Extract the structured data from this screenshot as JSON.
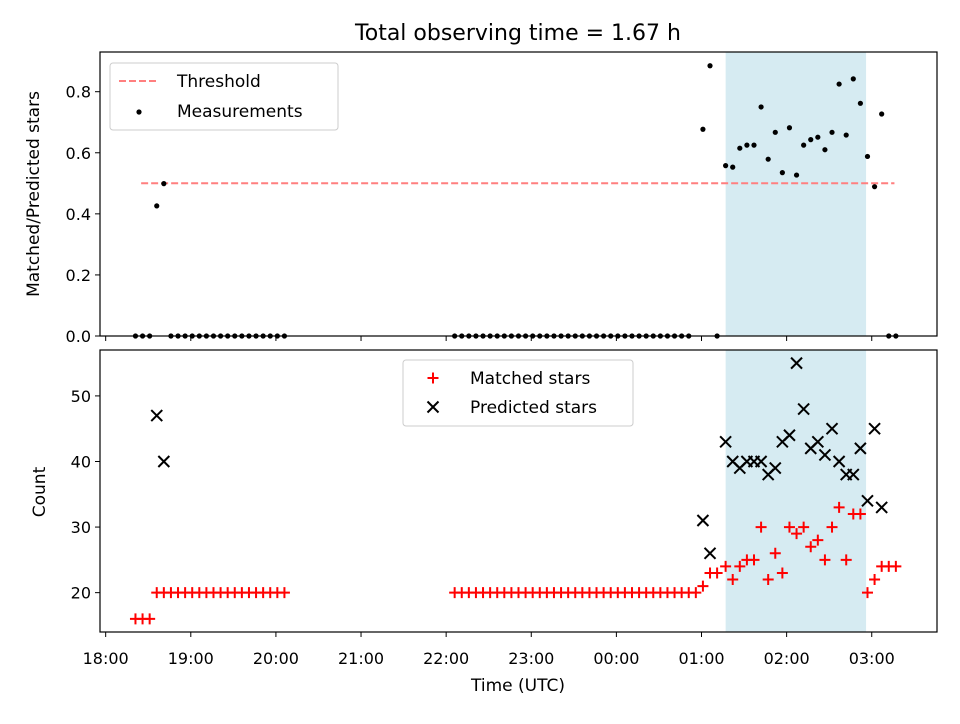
{
  "chart_data": [
    {
      "type": "scatter",
      "title": "Total observing time = 1.67 h",
      "ylabel": "Matched/Predicted stars",
      "xlim": [
        "17:56",
        "03:46"
      ],
      "ylim": [
        0,
        0.93
      ],
      "yticks": [
        0.0,
        0.2,
        0.4,
        0.6,
        0.8
      ],
      "ytick_labels": [
        "0.0",
        "0.2",
        "0.4",
        "0.6",
        "0.8"
      ],
      "shaded_span": {
        "start": "01:17",
        "end": "02:56",
        "color": "#add8e6"
      },
      "legend_position": "upper left",
      "threshold": {
        "name": "Threshold",
        "y": 0.5,
        "x_start": "18:25",
        "x_end": "03:16",
        "color": "#ff7f7f"
      },
      "measurements": {
        "name": "Measurements",
        "color": "#000000",
        "points": [
          [
            "18:21",
            0
          ],
          [
            "18:26",
            0
          ],
          [
            "18:31",
            0
          ],
          [
            "18:36",
            0.426
          ],
          [
            "18:41",
            0.499
          ],
          [
            "18:46",
            0
          ],
          [
            "18:51",
            0
          ],
          [
            "18:56",
            0
          ],
          [
            "19:01",
            0
          ],
          [
            "19:06",
            0
          ],
          [
            "19:11",
            0
          ],
          [
            "19:16",
            0
          ],
          [
            "19:21",
            0
          ],
          [
            "19:26",
            0
          ],
          [
            "19:31",
            0
          ],
          [
            "19:36",
            0
          ],
          [
            "19:41",
            0
          ],
          [
            "19:46",
            0
          ],
          [
            "19:51",
            0
          ],
          [
            "19:56",
            0
          ],
          [
            "20:01",
            0
          ],
          [
            "20:06",
            0
          ],
          [
            "22:06",
            0
          ],
          [
            "22:11",
            0
          ],
          [
            "22:16",
            0
          ],
          [
            "22:21",
            0
          ],
          [
            "22:26",
            0
          ],
          [
            "22:31",
            0
          ],
          [
            "22:36",
            0
          ],
          [
            "22:41",
            0
          ],
          [
            "22:46",
            0
          ],
          [
            "22:51",
            0
          ],
          [
            "22:56",
            0
          ],
          [
            "23:01",
            0
          ],
          [
            "23:06",
            0
          ],
          [
            "23:11",
            0
          ],
          [
            "23:16",
            0
          ],
          [
            "23:21",
            0
          ],
          [
            "23:26",
            0
          ],
          [
            "23:31",
            0
          ],
          [
            "23:36",
            0
          ],
          [
            "23:41",
            0
          ],
          [
            "23:46",
            0
          ],
          [
            "23:51",
            0
          ],
          [
            "23:56",
            0
          ],
          [
            "00:01",
            0
          ],
          [
            "00:06",
            0
          ],
          [
            "00:11",
            0
          ],
          [
            "00:16",
            0
          ],
          [
            "00:21",
            0
          ],
          [
            "00:26",
            0
          ],
          [
            "00:31",
            0
          ],
          [
            "00:36",
            0
          ],
          [
            "00:41",
            0
          ],
          [
            "00:46",
            0
          ],
          [
            "00:51",
            0
          ],
          [
            "01:01",
            0.677
          ],
          [
            "01:06",
            0.885
          ],
          [
            "01:11",
            0
          ],
          [
            "01:17",
            0.558
          ],
          [
            "01:22",
            0.553
          ],
          [
            "01:27",
            0.615
          ],
          [
            "01:32",
            0.625
          ],
          [
            "01:37",
            0.625
          ],
          [
            "01:42",
            0.75
          ],
          [
            "01:47",
            0.579
          ],
          [
            "01:52",
            0.667
          ],
          [
            "01:57",
            0.535
          ],
          [
            "02:02",
            0.682
          ],
          [
            "02:07",
            0.527
          ],
          [
            "02:12",
            0.625
          ],
          [
            "02:17",
            0.643
          ],
          [
            "02:22",
            0.651
          ],
          [
            "02:27",
            0.61
          ],
          [
            "02:32",
            0.667
          ],
          [
            "02:37",
            0.825
          ],
          [
            "02:42",
            0.658
          ],
          [
            "02:47",
            0.842
          ],
          [
            "02:52",
            0.762
          ],
          [
            "02:57",
            0.588
          ],
          [
            "03:02",
            0.489
          ],
          [
            "03:07",
            0.727
          ],
          [
            "03:12",
            0
          ],
          [
            "03:17",
            0
          ]
        ]
      }
    },
    {
      "type": "scatter",
      "xlabel": "Time (UTC)",
      "ylabel": "Count",
      "xlim": [
        "17:56",
        "03:46"
      ],
      "ylim": [
        14,
        57
      ],
      "yticks": [
        20,
        30,
        40,
        50
      ],
      "ytick_labels": [
        "20",
        "30",
        "40",
        "50"
      ],
      "xticks": [
        "18:00",
        "19:00",
        "20:00",
        "21:00",
        "22:00",
        "23:00",
        "00:00",
        "01:00",
        "02:00",
        "03:00"
      ],
      "shaded_span": {
        "start": "01:17",
        "end": "02:56",
        "color": "#add8e6"
      },
      "legend_position": "upper center",
      "series": [
        {
          "name": "Matched stars",
          "marker": "+",
          "color": "#ff0000",
          "points": [
            [
              "18:21",
              16
            ],
            [
              "18:26",
              16
            ],
            [
              "18:31",
              16
            ],
            [
              "18:36",
              20
            ],
            [
              "18:41",
              20
            ],
            [
              "18:46",
              20
            ],
            [
              "18:51",
              20
            ],
            [
              "18:56",
              20
            ],
            [
              "19:01",
              20
            ],
            [
              "19:06",
              20
            ],
            [
              "19:11",
              20
            ],
            [
              "19:16",
              20
            ],
            [
              "19:21",
              20
            ],
            [
              "19:26",
              20
            ],
            [
              "19:31",
              20
            ],
            [
              "19:36",
              20
            ],
            [
              "19:41",
              20
            ],
            [
              "19:46",
              20
            ],
            [
              "19:51",
              20
            ],
            [
              "19:56",
              20
            ],
            [
              "20:01",
              20
            ],
            [
              "20:06",
              20
            ],
            [
              "22:06",
              20
            ],
            [
              "22:11",
              20
            ],
            [
              "22:16",
              20
            ],
            [
              "22:21",
              20
            ],
            [
              "22:26",
              20
            ],
            [
              "22:31",
              20
            ],
            [
              "22:36",
              20
            ],
            [
              "22:41",
              20
            ],
            [
              "22:46",
              20
            ],
            [
              "22:51",
              20
            ],
            [
              "22:56",
              20
            ],
            [
              "23:01",
              20
            ],
            [
              "23:06",
              20
            ],
            [
              "23:11",
              20
            ],
            [
              "23:16",
              20
            ],
            [
              "23:21",
              20
            ],
            [
              "23:26",
              20
            ],
            [
              "23:31",
              20
            ],
            [
              "23:36",
              20
            ],
            [
              "23:41",
              20
            ],
            [
              "23:46",
              20
            ],
            [
              "23:51",
              20
            ],
            [
              "23:56",
              20
            ],
            [
              "00:01",
              20
            ],
            [
              "00:06",
              20
            ],
            [
              "00:11",
              20
            ],
            [
              "00:16",
              20
            ],
            [
              "00:21",
              20
            ],
            [
              "00:26",
              20
            ],
            [
              "00:31",
              20
            ],
            [
              "00:36",
              20
            ],
            [
              "00:41",
              20
            ],
            [
              "00:46",
              20
            ],
            [
              "00:51",
              20
            ],
            [
              "00:56",
              20
            ],
            [
              "01:01",
              21
            ],
            [
              "01:06",
              23
            ],
            [
              "01:11",
              23
            ],
            [
              "01:17",
              24
            ],
            [
              "01:22",
              22
            ],
            [
              "01:27",
              24
            ],
            [
              "01:32",
              25
            ],
            [
              "01:37",
              25
            ],
            [
              "01:42",
              30
            ],
            [
              "01:47",
              22
            ],
            [
              "01:52",
              26
            ],
            [
              "01:57",
              23
            ],
            [
              "02:02",
              30
            ],
            [
              "02:07",
              29
            ],
            [
              "02:12",
              30
            ],
            [
              "02:17",
              27
            ],
            [
              "02:22",
              28
            ],
            [
              "02:27",
              25
            ],
            [
              "02:32",
              30
            ],
            [
              "02:37",
              33
            ],
            [
              "02:42",
              25
            ],
            [
              "02:47",
              32
            ],
            [
              "02:52",
              32
            ],
            [
              "02:57",
              20
            ],
            [
              "03:02",
              22
            ],
            [
              "03:07",
              24
            ],
            [
              "03:12",
              24
            ],
            [
              "03:17",
              24
            ]
          ]
        },
        {
          "name": "Predicted stars",
          "marker": "x",
          "color": "#000000",
          "points": [
            [
              "18:36",
              47
            ],
            [
              "18:41",
              40
            ],
            [
              "01:01",
              31
            ],
            [
              "01:06",
              26
            ],
            [
              "01:17",
              43
            ],
            [
              "01:22",
              40
            ],
            [
              "01:27",
              39
            ],
            [
              "01:32",
              40
            ],
            [
              "01:37",
              40
            ],
            [
              "01:42",
              40
            ],
            [
              "01:47",
              38
            ],
            [
              "01:52",
              39
            ],
            [
              "01:57",
              43
            ],
            [
              "02:02",
              44
            ],
            [
              "02:07",
              55
            ],
            [
              "02:12",
              48
            ],
            [
              "02:17",
              42
            ],
            [
              "02:22",
              43
            ],
            [
              "02:27",
              41
            ],
            [
              "02:32",
              45
            ],
            [
              "02:37",
              40
            ],
            [
              "02:42",
              38
            ],
            [
              "02:47",
              38
            ],
            [
              "02:52",
              42
            ],
            [
              "02:57",
              34
            ],
            [
              "03:02",
              45
            ],
            [
              "03:07",
              33
            ]
          ]
        }
      ]
    }
  ]
}
